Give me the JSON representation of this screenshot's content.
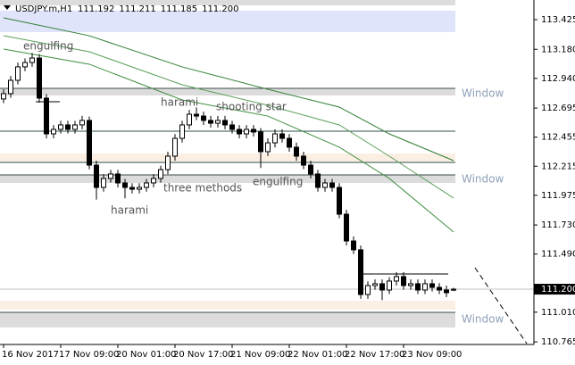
{
  "chart_data": {
    "type": "candlestick",
    "title": "USDJPY.m,H1",
    "header": [
      "111.192",
      "111.211",
      "111.185",
      "111.200"
    ],
    "current_price": "111.200",
    "current_value": 111.2,
    "categories": [
      "16 Nov 2017",
      null,
      null,
      null,
      null,
      null,
      null,
      null,
      "17 Nov 09:00",
      null,
      null,
      null,
      null,
      null,
      null,
      null,
      "20 Nov 01:00",
      null,
      null,
      null,
      null,
      null,
      null,
      null,
      "20 Nov 17:00",
      null,
      null,
      null,
      null,
      null,
      null,
      null,
      "21 Nov 09:00",
      null,
      null,
      null,
      null,
      null,
      null,
      null,
      "22 Nov 01:00",
      null,
      null,
      null,
      null,
      null,
      null,
      null,
      "22 Nov 17:00",
      null,
      null,
      null,
      null,
      null,
      null,
      null,
      "23 Nov 09:00",
      null,
      null,
      null,
      null,
      null,
      null,
      null
    ],
    "open": [
      112.77,
      112.814,
      112.924,
      113.035,
      113.071,
      113.108,
      112.777,
      112.482,
      112.519,
      112.556,
      112.519,
      112.556,
      112.593,
      112.224,
      112.04,
      112.114,
      112.151,
      112.077,
      112.04,
      112.025,
      112.04,
      112.077,
      112.114,
      112.187,
      112.298,
      112.445,
      112.556,
      112.644,
      112.629,
      112.593,
      112.57,
      112.593,
      112.556,
      112.519,
      112.482,
      112.519,
      112.497,
      112.335,
      112.408,
      112.482,
      112.445,
      112.372,
      112.298,
      112.224,
      112.151,
      112.04,
      112.077,
      112.04,
      111.819,
      111.598,
      111.525,
      111.156,
      111.23,
      111.245,
      111.193,
      111.267,
      111.304,
      111.23,
      111.245,
      111.193,
      111.245,
      111.215,
      111.193,
      111.192
    ],
    "high": [
      112.85,
      112.96,
      113.07,
      113.105,
      113.15,
      113.14,
      112.81,
      112.555,
      112.59,
      112.59,
      112.59,
      112.63,
      112.625,
      112.26,
      112.15,
      112.185,
      112.185,
      112.11,
      112.075,
      112.075,
      112.11,
      112.15,
      112.22,
      112.335,
      112.48,
      112.59,
      112.68,
      112.7,
      112.665,
      112.63,
      112.63,
      112.63,
      112.59,
      112.555,
      112.555,
      112.555,
      112.53,
      112.445,
      112.52,
      112.52,
      112.48,
      112.41,
      112.335,
      112.26,
      112.185,
      112.11,
      112.11,
      112.075,
      111.855,
      111.635,
      111.56,
      111.265,
      111.28,
      111.28,
      111.3,
      111.34,
      111.34,
      111.28,
      111.28,
      111.28,
      111.28,
      111.25,
      111.23,
      111.211
    ],
    "low": [
      112.735,
      112.78,
      112.89,
      113.0,
      113.035,
      112.74,
      112.445,
      112.445,
      112.485,
      112.485,
      112.485,
      112.52,
      112.19,
      111.94,
      112.005,
      112.08,
      112.04,
      111.95,
      111.99,
      111.99,
      112.005,
      112.04,
      112.08,
      112.15,
      112.26,
      112.41,
      112.52,
      112.595,
      112.555,
      112.535,
      112.535,
      112.52,
      112.485,
      112.445,
      112.445,
      112.46,
      112.2,
      112.3,
      112.37,
      112.41,
      112.335,
      112.26,
      112.19,
      112.115,
      112.005,
      112.005,
      112.005,
      111.785,
      111.56,
      111.49,
      111.12,
      111.12,
      111.195,
      111.11,
      111.16,
      111.23,
      111.195,
      111.195,
      111.16,
      111.16,
      111.18,
      111.16,
      111.135,
      111.185
    ],
    "close": [
      112.814,
      112.924,
      113.035,
      113.071,
      113.108,
      112.777,
      112.482,
      112.519,
      112.556,
      112.519,
      112.556,
      112.593,
      112.224,
      112.04,
      112.114,
      112.151,
      112.077,
      112.04,
      112.025,
      112.04,
      112.077,
      112.114,
      112.187,
      112.298,
      112.445,
      112.556,
      112.644,
      112.629,
      112.593,
      112.57,
      112.593,
      112.556,
      112.519,
      112.482,
      112.519,
      112.497,
      112.335,
      112.408,
      112.482,
      112.445,
      112.372,
      112.298,
      112.224,
      112.151,
      112.04,
      112.077,
      112.04,
      111.819,
      111.598,
      111.525,
      111.156,
      111.23,
      111.245,
      111.193,
      111.267,
      111.304,
      111.23,
      111.245,
      111.193,
      111.245,
      111.215,
      111.193,
      111.171,
      111.2
    ],
    "ma_lines": [
      {
        "color": "#2e7d32",
        "x": [
          0,
          12,
          25,
          37,
          47,
          54,
          63
        ],
        "values": [
          113.44,
          113.292,
          113.035,
          112.85,
          112.703,
          112.482,
          112.261
        ]
      },
      {
        "color": "#5a9e5a",
        "x": [
          0,
          12,
          25,
          37,
          47,
          54,
          63
        ],
        "values": [
          113.292,
          113.16,
          112.887,
          112.718,
          112.556,
          112.298,
          111.952
        ]
      },
      {
        "color": "#3f8f3f",
        "x": [
          0,
          12,
          25,
          37,
          47,
          54,
          63
        ],
        "values": [
          113.182,
          113.057,
          112.762,
          112.629,
          112.372,
          112.114,
          111.672
        ]
      }
    ],
    "zones": [
      {
        "low": 113.543,
        "high": 113.587,
        "color": "#dcdcdc"
      },
      {
        "low": 113.322,
        "high": 113.499,
        "color": "#e0e4fa"
      },
      {
        "low": 112.799,
        "high": 112.858,
        "color": "#dcdcdc"
      },
      {
        "low": 112.246,
        "high": 112.32,
        "color": "#fbefe4"
      },
      {
        "low": 112.077,
        "high": 112.143,
        "color": "#dcdcdc"
      },
      {
        "low": 111.031,
        "high": 111.105,
        "color": "#fbefe4"
      },
      {
        "low": 110.884,
        "high": 111.009,
        "color": "#dcdcdc"
      }
    ],
    "levels": [
      {
        "value": 112.858,
        "color": "#3a4a4a"
      },
      {
        "value": 112.504,
        "color": "#2f4f4f"
      },
      {
        "value": 112.246,
        "color": "#2f4f4f"
      },
      {
        "value": 112.143,
        "color": "#3a4a4a"
      },
      {
        "value": 111.009,
        "color": "#3a4a4a"
      }
    ],
    "annotations": [
      "engulfing",
      "harami",
      "shooting star",
      "three methods",
      "harami",
      "engulfing"
    ],
    "windows": [
      "Window",
      "Window",
      "Window"
    ],
    "ylim": [
      110.751,
      113.587
    ],
    "yticks": [
      110.765,
      {
        "value": 111.01,
        "label": "111.010"
      },
      {
        "value": 111.49,
        "label": "111.490"
      },
      {
        "value": 111.73,
        "label": "111.730"
      },
      111.975,
      112.215,
      112.455,
      112.695,
      {
        "value": 112.94,
        "label": "112.940"
      },
      {
        "value": 113.18,
        "label": "113.180"
      },
      113.425
    ]
  }
}
